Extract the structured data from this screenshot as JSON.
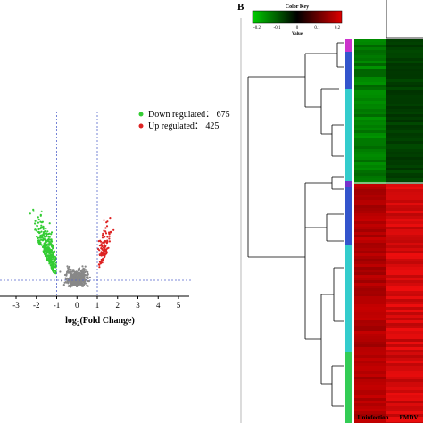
{
  "chart_data": [
    {
      "type": "scatter",
      "title": "",
      "xlabel_main": "log",
      "xlabel_sub": "2",
      "xlabel_rest": "(Fold Change)",
      "xlim": [
        -3.5,
        5.5
      ],
      "xticks": [
        "-3",
        "-2",
        "-1",
        "0",
        "1",
        "2",
        "3",
        "4",
        "5"
      ],
      "thresholds": {
        "x": [
          -1,
          1
        ]
      },
      "series": [
        {
          "name": "Down regulated",
          "label": "Down regulated： 675",
          "count": 675,
          "color": "#33cc33"
        },
        {
          "name": "Up regulated",
          "label": "Up regulated： 425",
          "count": 425,
          "color": "#dd2222"
        },
        {
          "name": "",
          "color": "#888888"
        }
      ]
    },
    {
      "type": "heatmap",
      "panel_label": "B",
      "color_key": {
        "title": "Color Key",
        "sublabel": "Value",
        "ticks": [
          "-0.2",
          "-0.1",
          "0",
          "0.1",
          "0.2"
        ],
        "low_color": "#00cc00",
        "mid_color": "#000000",
        "high_color": "#dd0000"
      },
      "columns": [
        "Uninfection",
        "FMDV"
      ],
      "row_groups": [
        "down",
        "up"
      ]
    }
  ]
}
